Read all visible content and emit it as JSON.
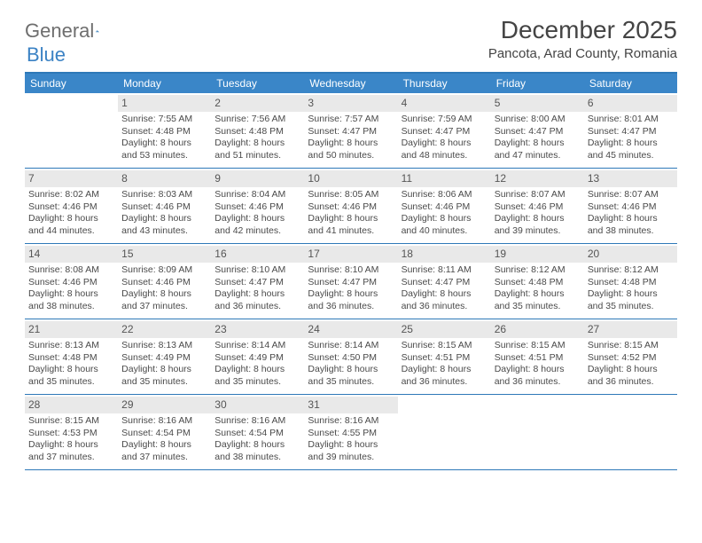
{
  "brand": {
    "part1": "General",
    "part2": "Blue"
  },
  "title": "December 2025",
  "location": "Pancota, Arad County, Romania",
  "colors": {
    "header_bg": "#3a86c8",
    "rule": "#2e79b8",
    "daynum_bg": "#e9e9e9",
    "text": "#4a4a4a",
    "logo_gray": "#6e6e6e",
    "logo_blue": "#3b82c4"
  },
  "day_names": [
    "Sunday",
    "Monday",
    "Tuesday",
    "Wednesday",
    "Thursday",
    "Friday",
    "Saturday"
  ],
  "weeks": [
    [
      {
        "n": "",
        "sunrise": "",
        "sunset": "",
        "daylight": ""
      },
      {
        "n": "1",
        "sunrise": "Sunrise: 7:55 AM",
        "sunset": "Sunset: 4:48 PM",
        "daylight": "Daylight: 8 hours and 53 minutes."
      },
      {
        "n": "2",
        "sunrise": "Sunrise: 7:56 AM",
        "sunset": "Sunset: 4:48 PM",
        "daylight": "Daylight: 8 hours and 51 minutes."
      },
      {
        "n": "3",
        "sunrise": "Sunrise: 7:57 AM",
        "sunset": "Sunset: 4:47 PM",
        "daylight": "Daylight: 8 hours and 50 minutes."
      },
      {
        "n": "4",
        "sunrise": "Sunrise: 7:59 AM",
        "sunset": "Sunset: 4:47 PM",
        "daylight": "Daylight: 8 hours and 48 minutes."
      },
      {
        "n": "5",
        "sunrise": "Sunrise: 8:00 AM",
        "sunset": "Sunset: 4:47 PM",
        "daylight": "Daylight: 8 hours and 47 minutes."
      },
      {
        "n": "6",
        "sunrise": "Sunrise: 8:01 AM",
        "sunset": "Sunset: 4:47 PM",
        "daylight": "Daylight: 8 hours and 45 minutes."
      }
    ],
    [
      {
        "n": "7",
        "sunrise": "Sunrise: 8:02 AM",
        "sunset": "Sunset: 4:46 PM",
        "daylight": "Daylight: 8 hours and 44 minutes."
      },
      {
        "n": "8",
        "sunrise": "Sunrise: 8:03 AM",
        "sunset": "Sunset: 4:46 PM",
        "daylight": "Daylight: 8 hours and 43 minutes."
      },
      {
        "n": "9",
        "sunrise": "Sunrise: 8:04 AM",
        "sunset": "Sunset: 4:46 PM",
        "daylight": "Daylight: 8 hours and 42 minutes."
      },
      {
        "n": "10",
        "sunrise": "Sunrise: 8:05 AM",
        "sunset": "Sunset: 4:46 PM",
        "daylight": "Daylight: 8 hours and 41 minutes."
      },
      {
        "n": "11",
        "sunrise": "Sunrise: 8:06 AM",
        "sunset": "Sunset: 4:46 PM",
        "daylight": "Daylight: 8 hours and 40 minutes."
      },
      {
        "n": "12",
        "sunrise": "Sunrise: 8:07 AM",
        "sunset": "Sunset: 4:46 PM",
        "daylight": "Daylight: 8 hours and 39 minutes."
      },
      {
        "n": "13",
        "sunrise": "Sunrise: 8:07 AM",
        "sunset": "Sunset: 4:46 PM",
        "daylight": "Daylight: 8 hours and 38 minutes."
      }
    ],
    [
      {
        "n": "14",
        "sunrise": "Sunrise: 8:08 AM",
        "sunset": "Sunset: 4:46 PM",
        "daylight": "Daylight: 8 hours and 38 minutes."
      },
      {
        "n": "15",
        "sunrise": "Sunrise: 8:09 AM",
        "sunset": "Sunset: 4:46 PM",
        "daylight": "Daylight: 8 hours and 37 minutes."
      },
      {
        "n": "16",
        "sunrise": "Sunrise: 8:10 AM",
        "sunset": "Sunset: 4:47 PM",
        "daylight": "Daylight: 8 hours and 36 minutes."
      },
      {
        "n": "17",
        "sunrise": "Sunrise: 8:10 AM",
        "sunset": "Sunset: 4:47 PM",
        "daylight": "Daylight: 8 hours and 36 minutes."
      },
      {
        "n": "18",
        "sunrise": "Sunrise: 8:11 AM",
        "sunset": "Sunset: 4:47 PM",
        "daylight": "Daylight: 8 hours and 36 minutes."
      },
      {
        "n": "19",
        "sunrise": "Sunrise: 8:12 AM",
        "sunset": "Sunset: 4:48 PM",
        "daylight": "Daylight: 8 hours and 35 minutes."
      },
      {
        "n": "20",
        "sunrise": "Sunrise: 8:12 AM",
        "sunset": "Sunset: 4:48 PM",
        "daylight": "Daylight: 8 hours and 35 minutes."
      }
    ],
    [
      {
        "n": "21",
        "sunrise": "Sunrise: 8:13 AM",
        "sunset": "Sunset: 4:48 PM",
        "daylight": "Daylight: 8 hours and 35 minutes."
      },
      {
        "n": "22",
        "sunrise": "Sunrise: 8:13 AM",
        "sunset": "Sunset: 4:49 PM",
        "daylight": "Daylight: 8 hours and 35 minutes."
      },
      {
        "n": "23",
        "sunrise": "Sunrise: 8:14 AM",
        "sunset": "Sunset: 4:49 PM",
        "daylight": "Daylight: 8 hours and 35 minutes."
      },
      {
        "n": "24",
        "sunrise": "Sunrise: 8:14 AM",
        "sunset": "Sunset: 4:50 PM",
        "daylight": "Daylight: 8 hours and 35 minutes."
      },
      {
        "n": "25",
        "sunrise": "Sunrise: 8:15 AM",
        "sunset": "Sunset: 4:51 PM",
        "daylight": "Daylight: 8 hours and 36 minutes."
      },
      {
        "n": "26",
        "sunrise": "Sunrise: 8:15 AM",
        "sunset": "Sunset: 4:51 PM",
        "daylight": "Daylight: 8 hours and 36 minutes."
      },
      {
        "n": "27",
        "sunrise": "Sunrise: 8:15 AM",
        "sunset": "Sunset: 4:52 PM",
        "daylight": "Daylight: 8 hours and 36 minutes."
      }
    ],
    [
      {
        "n": "28",
        "sunrise": "Sunrise: 8:15 AM",
        "sunset": "Sunset: 4:53 PM",
        "daylight": "Daylight: 8 hours and 37 minutes."
      },
      {
        "n": "29",
        "sunrise": "Sunrise: 8:16 AM",
        "sunset": "Sunset: 4:54 PM",
        "daylight": "Daylight: 8 hours and 37 minutes."
      },
      {
        "n": "30",
        "sunrise": "Sunrise: 8:16 AM",
        "sunset": "Sunset: 4:54 PM",
        "daylight": "Daylight: 8 hours and 38 minutes."
      },
      {
        "n": "31",
        "sunrise": "Sunrise: 8:16 AM",
        "sunset": "Sunset: 4:55 PM",
        "daylight": "Daylight: 8 hours and 39 minutes."
      },
      {
        "n": "",
        "sunrise": "",
        "sunset": "",
        "daylight": ""
      },
      {
        "n": "",
        "sunrise": "",
        "sunset": "",
        "daylight": ""
      },
      {
        "n": "",
        "sunrise": "",
        "sunset": "",
        "daylight": ""
      }
    ]
  ]
}
